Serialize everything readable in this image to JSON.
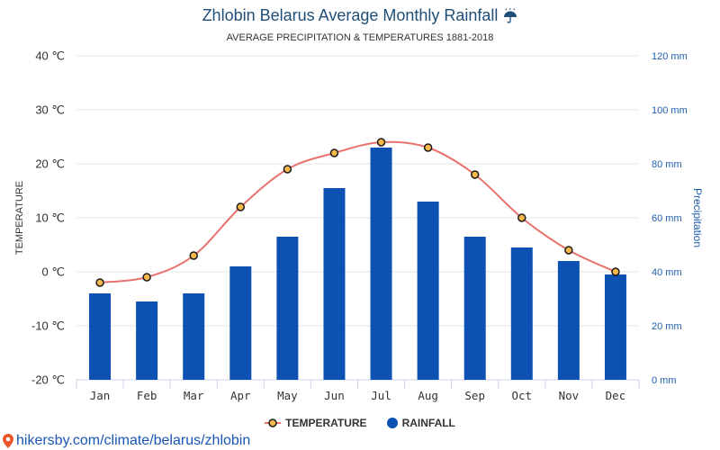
{
  "colors": {
    "title": "#1f4e79",
    "temperature_line": "#e8716b",
    "temperature_marker_fill": "#f6b84a",
    "temperature_marker_stroke": "#1a1a1a",
    "rainfall_bar": "#0d52b3",
    "precipitation_axis": "#1f5fae",
    "gridline": "#e6e6e6",
    "axis_line": "#ccd6eb",
    "footer_link": "#1a56b4",
    "footer_pin": "#e8562a"
  },
  "icons": {
    "title": "umbrella-rain-icon",
    "footer": "location-pin-icon",
    "legend_temperature": "line-with-circle-marker-icon",
    "legend_rainfall": "circle-marker-icon"
  },
  "chart_data": {
    "type": "bar",
    "title": "Zhlobin Belarus Average Monthly Rainfall",
    "subtitle": "AVERAGE PRECIPITATION & TEMPERATURES 1881-2018",
    "categories": [
      "Jan",
      "Feb",
      "Mar",
      "Apr",
      "May",
      "Jun",
      "Jul",
      "Aug",
      "Sep",
      "Oct",
      "Nov",
      "Dec"
    ],
    "series": [
      {
        "name": "TEMPERATURE",
        "type": "line",
        "axis": "left",
        "values": [
          -2,
          -1,
          3,
          12,
          19,
          22,
          24,
          23,
          18,
          10,
          4,
          0
        ]
      },
      {
        "name": "RAINFALL",
        "type": "bar",
        "axis": "right",
        "values": [
          32,
          29,
          32,
          42,
          53,
          71,
          86,
          66,
          53,
          49,
          44,
          39
        ]
      }
    ],
    "ylabel": "TEMPERATURE",
    "y2label": "Precipitation",
    "ylim": [
      -20,
      40
    ],
    "y2lim": [
      0,
      120
    ],
    "yticks": [
      "40 ℃",
      "30 ℃",
      "20 ℃",
      "10 ℃",
      "0 ℃",
      "-10 ℃",
      "-20 ℃"
    ],
    "y2ticks": [
      "120 mm",
      "100 mm",
      "80 mm",
      "60 mm",
      "40 mm",
      "20 mm",
      "0 mm"
    ],
    "grid": true,
    "legend": "bottom-center"
  },
  "footer": {
    "link_text": "hikersby.com/climate/belarus/zhlobin"
  }
}
